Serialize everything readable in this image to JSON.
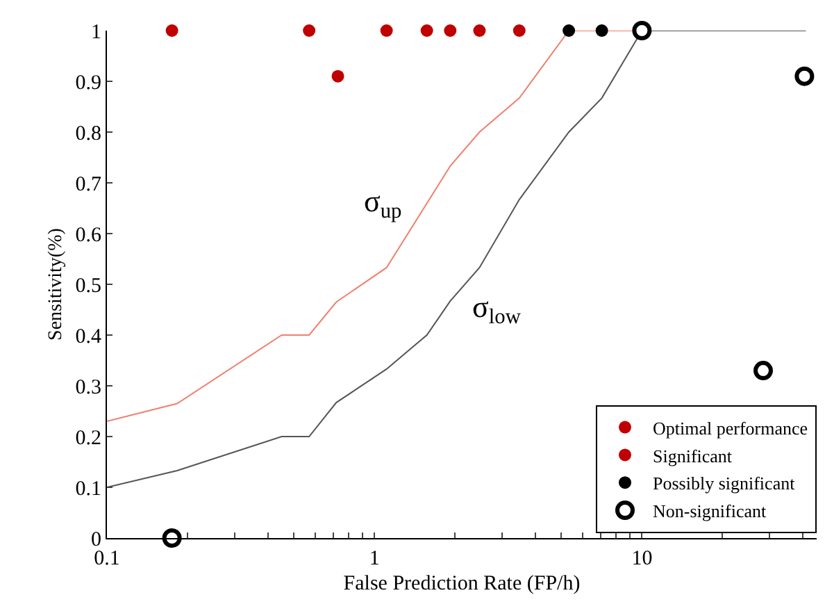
{
  "chart_data": {
    "type": "scatter",
    "xlabel": "False Prediction Rate (FP/h)",
    "ylabel": "Sensitivity(%)",
    "log": "x",
    "xlim": [
      0.1,
      45
    ],
    "ylim": [
      0,
      1
    ],
    "xticks": [
      0.1,
      {
        "value": 0.2,
        "label": null
      },
      {
        "value": 0.3,
        "label": null
      },
      {
        "value": 0.4,
        "label": null
      },
      {
        "value": 0.5,
        "label": null
      },
      {
        "value": 0.6,
        "label": null
      },
      {
        "value": 0.7,
        "label": null
      },
      {
        "value": 0.8,
        "label": null
      },
      {
        "value": 0.9,
        "label": null
      },
      1,
      {
        "value": 2,
        "label": null
      },
      {
        "value": 3,
        "label": null
      },
      {
        "value": 4,
        "label": null
      },
      {
        "value": 5,
        "label": null
      },
      {
        "value": 6,
        "label": null
      },
      {
        "value": 7,
        "label": null
      },
      {
        "value": 8,
        "label": null
      },
      {
        "value": 9,
        "label": null
      },
      10,
      {
        "value": 20,
        "label": null
      },
      {
        "value": 30,
        "label": null
      },
      {
        "value": 40,
        "label": null
      }
    ],
    "yticks": [
      0,
      0.1,
      0.2,
      0.3,
      0.4,
      0.5,
      0.6,
      0.7,
      0.8,
      0.9,
      1
    ],
    "legend": "bottom right",
    "series": [
      {
        "type": "line",
        "color": "#f08070",
        "marker": "none",
        "x": [
          0.1,
          0.183,
          0.45,
          0.57,
          0.72,
          1.11,
          1.92,
          2.47,
          3.48,
          5.33,
          10
        ],
        "values": [
          0.23,
          0.265,
          0.4,
          0.4,
          0.465,
          0.533,
          0.733,
          0.8,
          0.867,
          1,
          1
        ]
      },
      {
        "type": "line",
        "color": "#555555",
        "marker": "none",
        "x": [
          0.1,
          0.183,
          0.45,
          0.57,
          0.72,
          1.11,
          1.57,
          1.92,
          2.47,
          3.48,
          5.33,
          7.08,
          10,
          41
        ],
        "values": [
          0.1,
          0.133,
          0.2,
          0.2,
          0.267,
          0.333,
          0.4,
          0.467,
          0.533,
          0.667,
          0.8,
          0.867,
          1,
          1
        ]
      },
      {
        "name": "Optimal performance",
        "color": "#c00000",
        "marker": "circle",
        "x": [
          0.175
        ],
        "values": [
          1
        ]
      },
      {
        "name": "Significant",
        "color": "#c00000",
        "marker": "circle",
        "x": [
          0.57,
          0.73,
          1.11,
          1.57,
          1.92,
          2.47,
          3.48
        ],
        "values": [
          1,
          0.91,
          1,
          1,
          1,
          1,
          1
        ]
      },
      {
        "name": "Possibly significant",
        "color": "#000000",
        "marker": "circle",
        "x": [
          5.33,
          7.08
        ],
        "values": [
          1,
          1
        ]
      },
      {
        "name": "Non-significant",
        "color": "#ffffff",
        "marker": "circle",
        "x": [
          0.175,
          10,
          28.4,
          40.5
        ],
        "values": [
          0,
          1,
          0.33,
          0.91
        ]
      }
    ],
    "annotations": [
      "σ$_{up}$",
      "σ$_{low}$"
    ]
  }
}
